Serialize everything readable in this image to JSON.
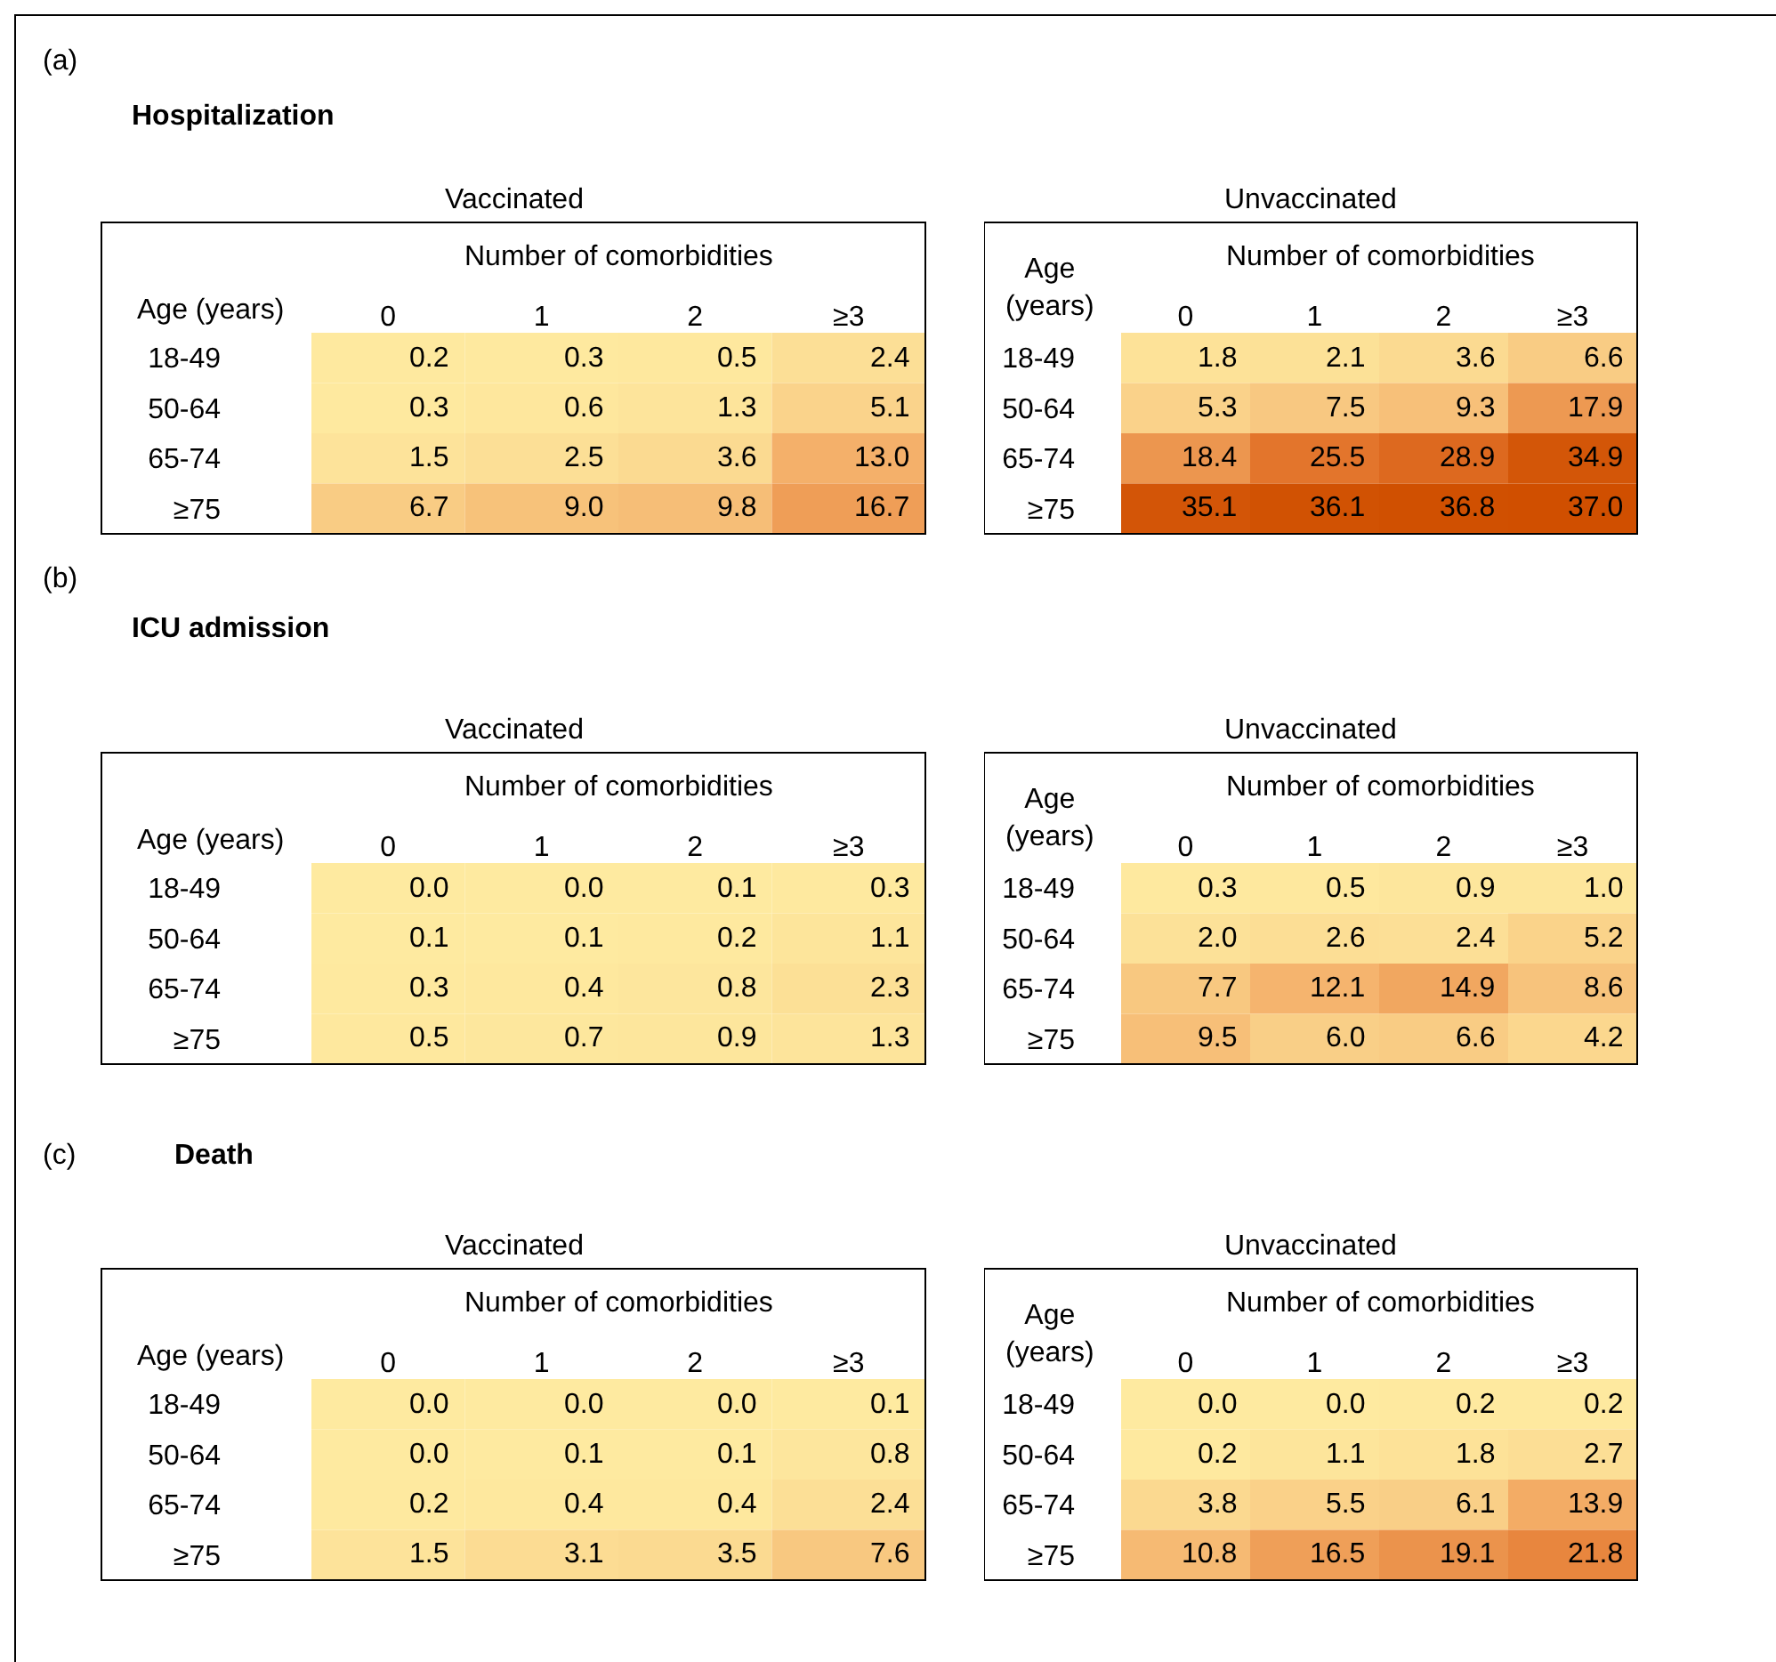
{
  "chart_data": [
    {
      "type": "heatmap",
      "title": "Vaccinated",
      "annotations": [
        "(a)",
        "Hospitalization"
      ],
      "xlabel": "Number of comorbidities",
      "ylabel": "Age (years)",
      "categories": [
        "0",
        "1",
        "2",
        "≥3"
      ],
      "y_categories": [
        "18-49",
        "50-64",
        "65-74",
        "≥75"
      ],
      "cells": [
        [
          0.2,
          0.3,
          0.5,
          2.4
        ],
        [
          0.3,
          0.6,
          1.3,
          5.1
        ],
        [
          1.5,
          2.5,
          3.6,
          13.0
        ],
        [
          6.7,
          9.0,
          9.8,
          16.7
        ]
      ],
      "cell_labels": [
        [
          "0.2",
          "0.3",
          "0.5",
          "2.4"
        ],
        [
          "0.3",
          "0.6",
          "1.3",
          "5.1"
        ],
        [
          "1.5",
          "2.5",
          "3.6",
          "13.0"
        ],
        [
          "6.7",
          "9.0",
          "9.8",
          "16.7"
        ]
      ],
      "data_labels": true
    },
    {
      "type": "heatmap",
      "title": "Unvaccinated",
      "xlabel": "Number of comorbidities",
      "ylabel": "Age (years)",
      "categories": [
        "0",
        "1",
        "2",
        "≥3"
      ],
      "y_categories": [
        "18-49",
        "50-64",
        "65-74",
        "≥75"
      ],
      "cells": [
        [
          1.8,
          2.1,
          3.6,
          6.6
        ],
        [
          5.3,
          7.5,
          9.3,
          17.9
        ],
        [
          18.4,
          25.5,
          28.9,
          34.9
        ],
        [
          35.1,
          36.1,
          36.8,
          37.0
        ]
      ],
      "cell_labels": [
        [
          "1.8",
          "2.1",
          "3.6",
          "6.6"
        ],
        [
          "5.3",
          "7.5",
          "9.3",
          "17.9"
        ],
        [
          "18.4",
          "25.5",
          "28.9",
          "34.9"
        ],
        [
          "35.1",
          "36.1",
          "36.8",
          "37.0"
        ]
      ],
      "data_labels": true
    },
    {
      "type": "heatmap",
      "title": "Vaccinated",
      "annotations": [
        "(b)",
        "ICU admission"
      ],
      "xlabel": "Number of comorbidities",
      "ylabel": "Age (years)",
      "categories": [
        "0",
        "1",
        "2",
        "≥3"
      ],
      "y_categories": [
        "18-49",
        "50-64",
        "65-74",
        "≥75"
      ],
      "cells": [
        [
          0.0,
          0.0,
          0.1,
          0.3
        ],
        [
          0.1,
          0.1,
          0.2,
          1.1
        ],
        [
          0.3,
          0.4,
          0.8,
          2.3
        ],
        [
          0.5,
          0.7,
          0.9,
          1.3
        ]
      ],
      "cell_labels": [
        [
          "0.0",
          "0.0",
          "0.1",
          "0.3"
        ],
        [
          "0.1",
          "0.1",
          "0.2",
          "1.1"
        ],
        [
          "0.3",
          "0.4",
          "0.8",
          "2.3"
        ],
        [
          "0.5",
          "0.7",
          "0.9",
          "1.3"
        ]
      ],
      "data_labels": true
    },
    {
      "type": "heatmap",
      "title": "Unvaccinated",
      "xlabel": "Number of comorbidities",
      "ylabel": "Age (years)",
      "categories": [
        "0",
        "1",
        "2",
        "≥3"
      ],
      "y_categories": [
        "18-49",
        "50-64",
        "65-74",
        "≥75"
      ],
      "cells": [
        [
          0.3,
          0.5,
          0.9,
          1.0
        ],
        [
          2.0,
          2.6,
          2.4,
          5.2
        ],
        [
          7.7,
          12.1,
          14.9,
          8.6
        ],
        [
          9.5,
          6.0,
          6.6,
          4.2
        ]
      ],
      "cell_labels": [
        [
          "0.3",
          "0.5",
          "0.9",
          "1.0"
        ],
        [
          "2.0",
          "2.6",
          "2.4",
          "5.2"
        ],
        [
          "7.7",
          "12.1",
          "14.9",
          "8.6"
        ],
        [
          "9.5",
          "6.0",
          "6.6",
          "4.2"
        ]
      ],
      "data_labels": true
    },
    {
      "type": "heatmap",
      "title": "Vaccinated",
      "annotations": [
        "(c)",
        "Death"
      ],
      "xlabel": "Number of comorbidities",
      "ylabel": "Age (years)",
      "categories": [
        "0",
        "1",
        "2",
        "≥3"
      ],
      "y_categories": [
        "18-49",
        "50-64",
        "65-74",
        "≥75"
      ],
      "cells": [
        [
          0.0,
          0.0,
          0.0,
          0.1
        ],
        [
          0.0,
          0.1,
          0.1,
          0.8
        ],
        [
          0.2,
          0.4,
          0.4,
          2.4
        ],
        [
          1.5,
          3.1,
          3.5,
          7.6
        ]
      ],
      "cell_labels": [
        [
          "0.0",
          "0.0",
          "0.0",
          "0.1"
        ],
        [
          "0.0",
          "0.1",
          "0.1",
          "0.8"
        ],
        [
          "0.2",
          "0.4",
          "0.4",
          "2.4"
        ],
        [
          "1.5",
          "3.1",
          "3.5",
          "7.6"
        ]
      ],
      "data_labels": true
    },
    {
      "type": "heatmap",
      "title": "Unvaccinated",
      "xlabel": "Number of comorbidities",
      "ylabel": "Age (years)",
      "categories": [
        "0",
        "1",
        "2",
        "≥3"
      ],
      "y_categories": [
        "18-49",
        "50-64",
        "65-74",
        "≥75"
      ],
      "cells": [
        [
          0.0,
          0.0,
          0.2,
          0.2
        ],
        [
          0.2,
          1.1,
          1.8,
          2.7
        ],
        [
          3.8,
          5.5,
          6.1,
          13.9
        ],
        [
          10.8,
          16.5,
          19.1,
          21.8
        ]
      ],
      "cell_labels": [
        [
          "0.0",
          "0.0",
          "0.2",
          "0.2"
        ],
        [
          "0.2",
          "1.1",
          "1.8",
          "2.7"
        ],
        [
          "3.8",
          "5.5",
          "6.1",
          "13.9"
        ],
        [
          "10.8",
          "16.5",
          "19.1",
          "21.8"
        ]
      ],
      "data_labels": true
    }
  ]
}
